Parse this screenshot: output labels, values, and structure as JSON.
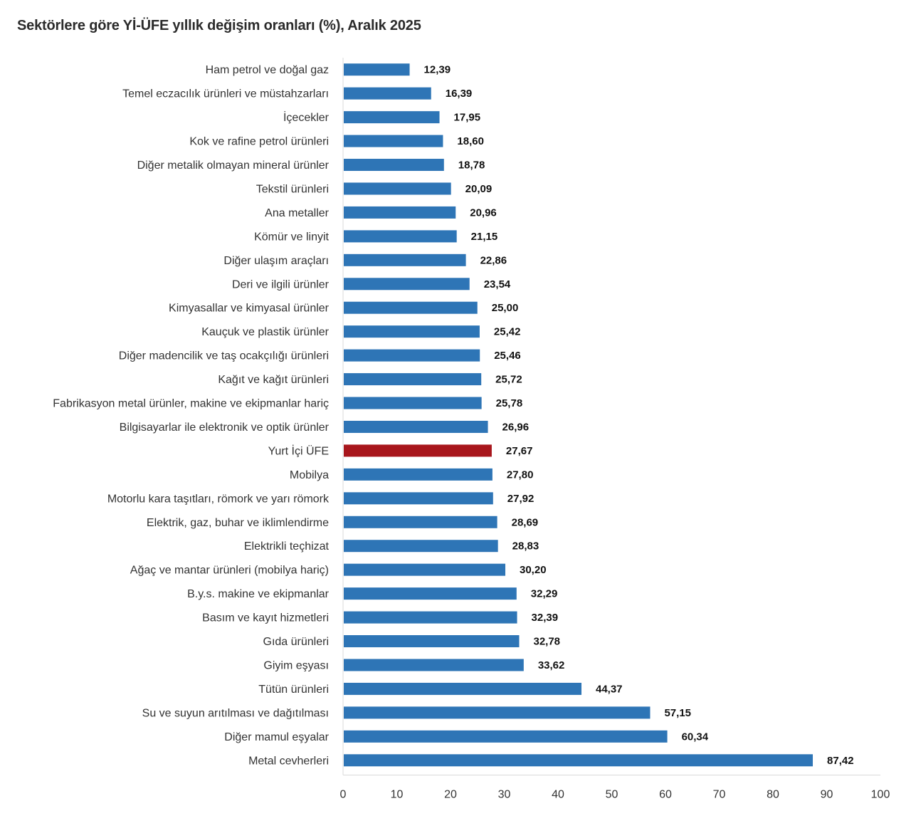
{
  "chart_data": {
    "type": "bar",
    "orientation": "horizontal",
    "title": "Sektörlere göre Yİ-ÜFE yıllık değişim oranları (%), Aralık 2025",
    "xlabel": "",
    "ylabel": "",
    "xlim": [
      0,
      100
    ],
    "xticks": [
      "0",
      "10",
      "20",
      "30",
      "40",
      "50",
      "60",
      "70",
      "80",
      "90",
      "100"
    ],
    "grid": false,
    "legend": "none",
    "colors": {
      "default": "#2e75b6",
      "highlight": "#a8161c"
    },
    "categories": [
      "Ham petrol ve doğal gaz",
      "Temel eczacılık ürünleri ve müstahzarları",
      "İçecekler",
      "Kok ve rafine petrol ürünleri",
      "Diğer metalik olmayan mineral ürünler",
      "Tekstil ürünleri",
      "Ana metaller",
      "Kömür ve linyit",
      "Diğer ulaşım araçları",
      "Deri ve ilgili ürünler",
      "Kimyasallar ve kimyasal ürünler",
      "Kauçuk ve plastik ürünler",
      "Diğer madencilik ve taş ocakçılığı ürünleri",
      "Kağıt ve kağıt ürünleri",
      "Fabrikasyon metal ürünler, makine ve ekipmanlar hariç",
      "Bilgisayarlar ile elektronik ve optik ürünler",
      "Yurt İçi ÜFE",
      "Mobilya",
      "Motorlu kara taşıtları, römork ve yarı römork",
      "Elektrik, gaz, buhar ve iklimlendirme",
      "Elektrikli teçhizat",
      "Ağaç ve mantar ürünleri (mobilya hariç)",
      "B.y.s. makine ve ekipmanlar",
      "Basım ve kayıt hizmetleri",
      "Gıda ürünleri",
      "Giyim eşyası",
      "Tütün ürünleri",
      "Su ve suyun arıtılması ve dağıtılması",
      "Diğer mamul eşyalar",
      "Metal cevherleri"
    ],
    "values": [
      12.39,
      16.39,
      17.95,
      18.6,
      18.78,
      20.09,
      20.96,
      21.15,
      22.86,
      23.54,
      25.0,
      25.42,
      25.46,
      25.72,
      25.78,
      26.96,
      27.67,
      27.8,
      27.92,
      28.69,
      28.83,
      30.2,
      32.29,
      32.39,
      32.78,
      33.62,
      44.37,
      57.15,
      60.34,
      87.42
    ],
    "value_labels": [
      "12,39",
      "16,39",
      "17,95",
      "18,60",
      "18,78",
      "20,09",
      "20,96",
      "21,15",
      "22,86",
      "23,54",
      "25,00",
      "25,42",
      "25,46",
      "25,72",
      "25,78",
      "26,96",
      "27,67",
      "27,80",
      "27,92",
      "28,69",
      "28,83",
      "30,20",
      "32,29",
      "32,39",
      "32,78",
      "33,62",
      "44,37",
      "57,15",
      "60,34",
      "87,42"
    ],
    "highlight_category": "Yurt İçi ÜFE"
  }
}
